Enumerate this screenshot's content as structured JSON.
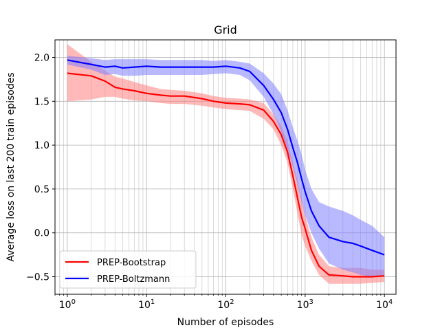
{
  "chart_data": {
    "type": "line",
    "title": "Grid",
    "xlabel": "Number of episodes",
    "ylabel": "Average loss on last 200 train episodes",
    "xscale": "log",
    "xlim": [
      0.7,
      14000
    ],
    "ylim": [
      -0.7,
      2.2
    ],
    "x_ticks": [
      1,
      10,
      100,
      1000,
      10000
    ],
    "x_tick_labels": [
      {
        "base": "10",
        "exp": "0"
      },
      {
        "base": "10",
        "exp": "1"
      },
      {
        "base": "10",
        "exp": "2"
      },
      {
        "base": "10",
        "exp": "3"
      },
      {
        "base": "10",
        "exp": "4"
      }
    ],
    "y_ticks": [
      -0.5,
      0.0,
      0.5,
      1.0,
      1.5,
      2.0
    ],
    "y_tick_labels": [
      "−0.5",
      "0.0",
      "0.5",
      "1.0",
      "1.5",
      "2.0"
    ],
    "grid": true,
    "grid_minor_x": true,
    "legend_position": "lower-left",
    "series": [
      {
        "name": "PREP-Bootstrap",
        "color": "#ff0000",
        "band_color": "#ff8080",
        "x": [
          1,
          2,
          3,
          4,
          5,
          7,
          10,
          15,
          20,
          30,
          50,
          70,
          100,
          150,
          200,
          300,
          400,
          500,
          600,
          700,
          800,
          900,
          1000,
          1200,
          1500,
          2000,
          3000,
          4000,
          5000,
          7000,
          10000
        ],
        "y": [
          1.82,
          1.79,
          1.73,
          1.66,
          1.64,
          1.62,
          1.59,
          1.57,
          1.56,
          1.56,
          1.53,
          1.5,
          1.48,
          1.47,
          1.46,
          1.4,
          1.27,
          1.12,
          0.92,
          0.65,
          0.4,
          0.18,
          0.05,
          -0.2,
          -0.38,
          -0.48,
          -0.49,
          -0.5,
          -0.5,
          -0.5,
          -0.49
        ],
        "upper": [
          2.15,
          1.95,
          1.85,
          1.78,
          1.76,
          1.72,
          1.68,
          1.64,
          1.63,
          1.62,
          1.59,
          1.56,
          1.54,
          1.53,
          1.52,
          1.48,
          1.35,
          1.22,
          1.05,
          0.8,
          0.6,
          0.4,
          0.2,
          -0.05,
          -0.25,
          -0.38,
          -0.4,
          -0.4,
          -0.4,
          -0.42,
          -0.42
        ],
        "lower": [
          1.5,
          1.52,
          1.55,
          1.55,
          1.53,
          1.51,
          1.5,
          1.48,
          1.47,
          1.47,
          1.45,
          1.43,
          1.41,
          1.4,
          1.39,
          1.3,
          1.18,
          1.0,
          0.8,
          0.5,
          0.22,
          -0.02,
          -0.15,
          -0.32,
          -0.48,
          -0.58,
          -0.58,
          -0.58,
          -0.58,
          -0.57,
          -0.56
        ]
      },
      {
        "name": "PREP-Boltzmann",
        "color": "#0000ff",
        "band_color": "#8080ff",
        "x": [
          1,
          2,
          3,
          4,
          5,
          7,
          10,
          15,
          20,
          30,
          50,
          70,
          100,
          150,
          200,
          300,
          400,
          500,
          600,
          700,
          800,
          900,
          1000,
          1200,
          1500,
          2000,
          3000,
          4000,
          5000,
          7000,
          10000
        ],
        "y": [
          1.97,
          1.92,
          1.89,
          1.9,
          1.88,
          1.89,
          1.9,
          1.89,
          1.89,
          1.89,
          1.89,
          1.89,
          1.9,
          1.88,
          1.84,
          1.68,
          1.52,
          1.37,
          1.18,
          0.97,
          0.8,
          0.62,
          0.47,
          0.25,
          0.08,
          -0.05,
          -0.1,
          -0.12,
          -0.15,
          -0.2,
          -0.25
        ],
        "upper": [
          2.02,
          1.99,
          1.97,
          1.98,
          1.98,
          1.98,
          1.98,
          1.97,
          1.97,
          1.97,
          1.97,
          1.96,
          1.97,
          1.95,
          1.93,
          1.82,
          1.7,
          1.58,
          1.4,
          1.2,
          1.05,
          0.9,
          0.72,
          0.5,
          0.35,
          0.3,
          0.25,
          0.2,
          0.15,
          0.08,
          -0.05
        ],
        "lower": [
          1.92,
          1.86,
          1.8,
          1.81,
          1.79,
          1.79,
          1.8,
          1.8,
          1.8,
          1.8,
          1.8,
          1.81,
          1.82,
          1.8,
          1.74,
          1.55,
          1.35,
          1.15,
          0.95,
          0.75,
          0.55,
          0.35,
          0.2,
          0.0,
          -0.18,
          -0.35,
          -0.42,
          -0.45,
          -0.48,
          -0.5,
          -0.48
        ]
      }
    ]
  }
}
